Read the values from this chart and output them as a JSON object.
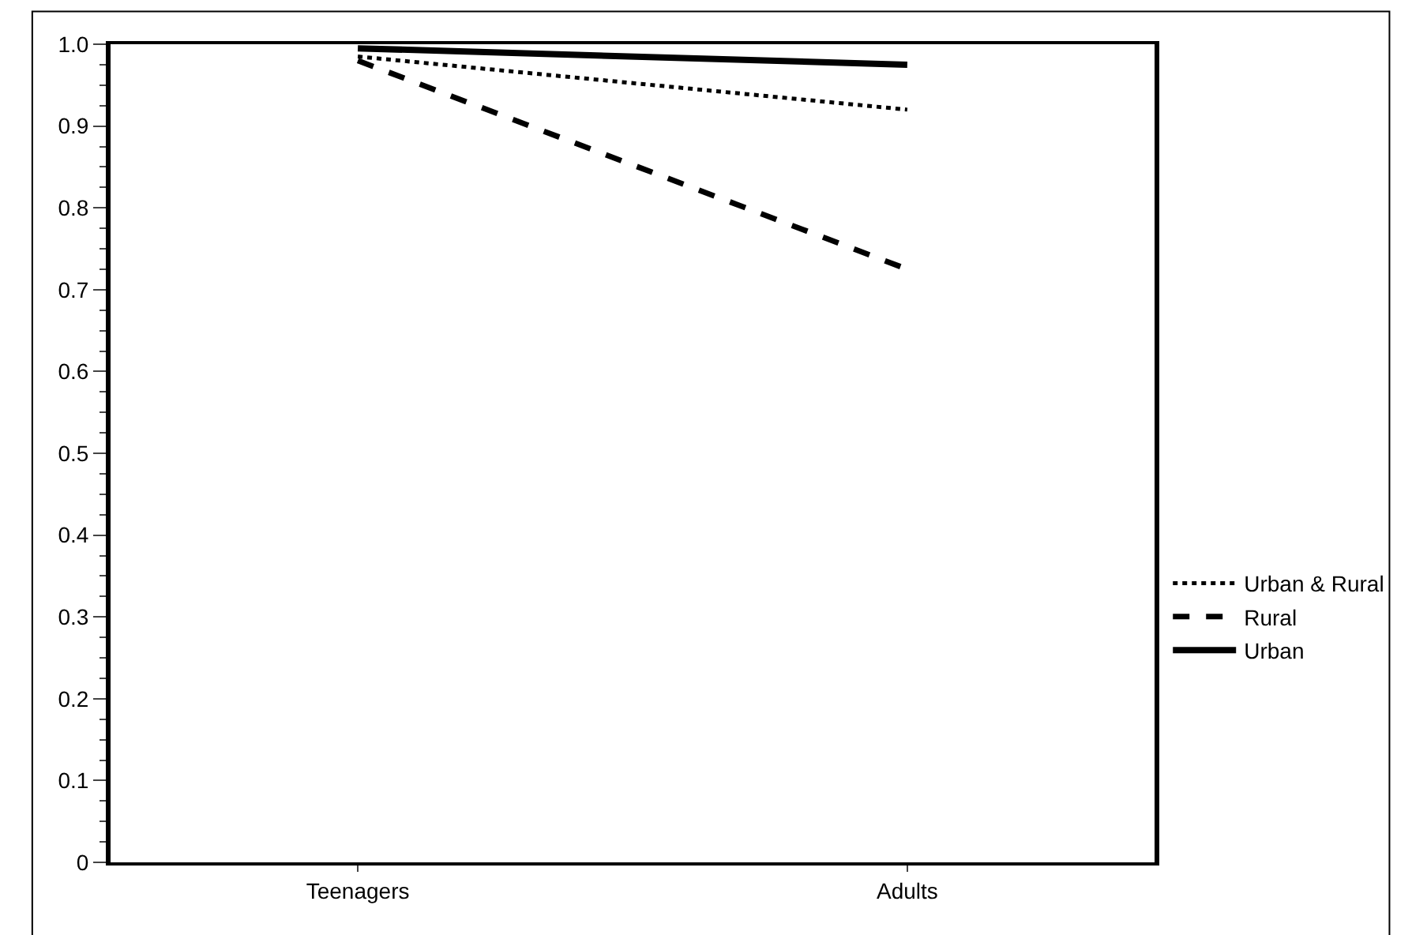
{
  "chart_data": {
    "type": "line",
    "categories": [
      "Teenagers",
      "Adults"
    ],
    "series": [
      {
        "name": "Urban & Rural",
        "color": "#000000",
        "line_style": "dotted",
        "values": [
          0.985,
          0.92
        ]
      },
      {
        "name": "Rural",
        "color": "#000000",
        "line_style": "dashed",
        "values": [
          0.98,
          0.725
        ]
      },
      {
        "name": "Urban",
        "color": "#000000",
        "line_style": "solid",
        "values": [
          0.995,
          0.975
        ]
      }
    ],
    "ylim": [
      0,
      1
    ],
    "yticks": [
      0,
      {
        "value": 0.1,
        "label": "0.1"
      },
      {
        "value": 0.2,
        "label": "0.2"
      },
      {
        "value": 0.3,
        "label": "0.3"
      },
      {
        "value": 0.4,
        "label": "0.4"
      },
      {
        "value": 0.5,
        "label": "0.5"
      },
      {
        "value": 0.6,
        "label": "0.6"
      },
      {
        "value": 0.7,
        "label": "0.7"
      },
      {
        "value": 0.8,
        "label": "0.8"
      },
      {
        "value": 0.9,
        "label": "0.9"
      },
      {
        "value": 1,
        "label": "1.0"
      }
    ],
    "grid": false,
    "legend": "right",
    "marker": "none"
  }
}
